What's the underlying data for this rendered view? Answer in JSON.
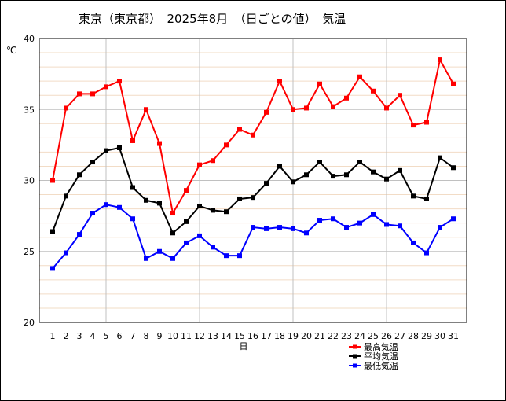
{
  "chart_data": {
    "type": "line",
    "title": "東京（東京都）　2025年8月　（日ごとの値）　気温",
    "xlabel": "日",
    "ylabel": "℃",
    "ylim": [
      20,
      40
    ],
    "yticks": [
      20,
      25,
      30,
      35,
      40
    ],
    "grid": true,
    "legend_position": "bottom-right",
    "categories": [
      "1",
      "2",
      "3",
      "4",
      "5",
      "6",
      "7",
      "8",
      "9",
      "10",
      "11",
      "12",
      "13",
      "14",
      "15",
      "16",
      "17",
      "18",
      "19",
      "20",
      "21",
      "22",
      "23",
      "24",
      "25",
      "26",
      "27",
      "28",
      "29",
      "30",
      "31"
    ],
    "series": [
      {
        "name": "最高気温",
        "color": "#ff0000",
        "values": [
          30.0,
          35.1,
          36.1,
          36.1,
          36.6,
          37.0,
          32.8,
          35.0,
          32.6,
          27.7,
          29.3,
          31.1,
          31.4,
          32.5,
          33.6,
          33.2,
          34.8,
          37.0,
          35.0,
          35.1,
          36.8,
          35.2,
          35.8,
          37.3,
          36.3,
          35.1,
          36.0,
          33.9,
          34.1,
          38.5,
          36.8
        ]
      },
      {
        "name": "平均気温",
        "color": "#000000",
        "values": [
          26.4,
          28.9,
          30.4,
          31.3,
          32.1,
          32.3,
          29.5,
          28.6,
          28.4,
          26.3,
          27.1,
          28.2,
          27.9,
          27.8,
          28.7,
          28.8,
          29.8,
          31.0,
          29.9,
          30.4,
          31.3,
          30.3,
          30.4,
          31.3,
          30.6,
          30.1,
          30.7,
          28.9,
          28.7,
          31.6,
          30.9
        ]
      },
      {
        "name": "最低気温",
        "color": "#0000ff",
        "values": [
          23.8,
          24.9,
          26.2,
          27.7,
          28.3,
          28.1,
          27.3,
          24.5,
          25.0,
          24.5,
          25.6,
          26.1,
          25.3,
          24.7,
          24.7,
          26.7,
          26.6,
          26.7,
          26.6,
          26.3,
          27.2,
          27.3,
          26.7,
          27.0,
          27.6,
          26.9,
          26.8,
          25.6,
          24.9,
          26.7,
          27.3
        ]
      }
    ]
  }
}
